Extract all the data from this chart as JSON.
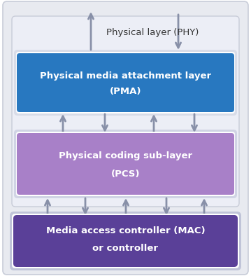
{
  "fig_width": 3.59,
  "fig_height": 3.94,
  "bg_outer_color": "#e8eaf0",
  "bg_inner_color": "#e8eaf2",
  "pma_color": "#2878c0",
  "pcs_color": "#a880c8",
  "mac_color": "#5a4098",
  "text_white": "#ffffff",
  "text_dark": "#333333",
  "arrow_color": "#8890a8",
  "phy_label": "Physical layer (PHY)",
  "pma_line1": "Physical media attachment layer",
  "pma_line2": "(PMA)",
  "pcs_line1": "Physical coding sub-layer",
  "pcs_line2": "(PCS)",
  "mac_line1": "Media access controller (MAC)",
  "mac_line2": "or controller",
  "outer_edge_color": "#c8ccd8",
  "inner_edge_color": "#c8ccd8",
  "block_shadow_color": "#d0d4e0"
}
